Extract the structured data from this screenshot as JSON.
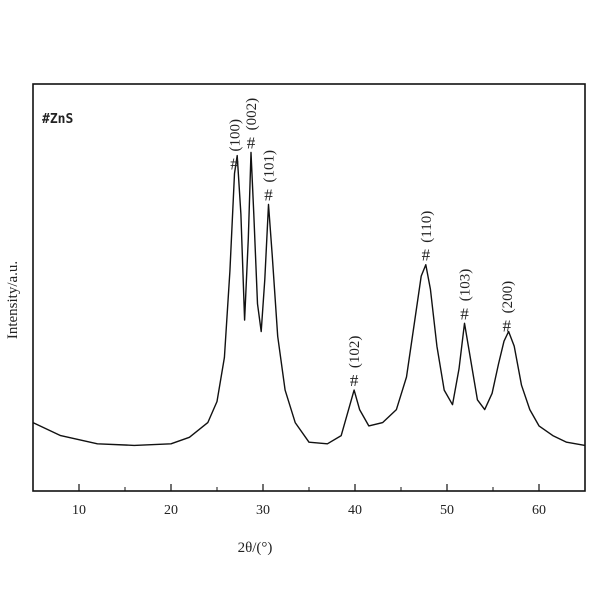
{
  "chart_data": {
    "type": "line",
    "xlabel": "2θ/(°)",
    "ylabel": "Intensity/a.u.",
    "xlim": [
      5,
      65
    ],
    "xticks": [
      10,
      20,
      30,
      40,
      50,
      60
    ],
    "yticks_labeled": false,
    "legend": {
      "text": "#ZnS",
      "placement": "top-left"
    },
    "series": [
      {
        "x": [
          5,
          8,
          12,
          16,
          20,
          22,
          24,
          25,
          25.8,
          26.4,
          26.9,
          27.2,
          27.6,
          28.0,
          28.4,
          28.7,
          29.0,
          29.4,
          29.8,
          30.2,
          30.6,
          31.0,
          31.6,
          32.4,
          33.5,
          35,
          37,
          38.5,
          39.4,
          39.9,
          40.5,
          41.5,
          43,
          44.5,
          45.6,
          46.5,
          47.2,
          47.7,
          48.2,
          48.9,
          49.7,
          50.6,
          51.3,
          51.9,
          52.5,
          53.3,
          54.1,
          54.9,
          55.6,
          56.2,
          56.7,
          57.3,
          58.1,
          59,
          60,
          61.5,
          63,
          65
        ],
        "y": [
          4.2,
          3.4,
          2.9,
          2.8,
          2.9,
          3.3,
          4.2,
          5.5,
          8.2,
          13.5,
          19.5,
          20.6,
          17.0,
          10.5,
          15.5,
          20.8,
          17.0,
          11.5,
          9.8,
          13.0,
          17.6,
          14.5,
          9.5,
          6.2,
          4.2,
          3.0,
          2.9,
          3.4,
          5.2,
          6.2,
          5.0,
          4.0,
          4.2,
          5.0,
          7.0,
          10.5,
          13.2,
          13.9,
          12.4,
          8.9,
          6.2,
          5.3,
          7.5,
          10.3,
          8.3,
          5.6,
          5.0,
          6.0,
          7.8,
          9.2,
          9.8,
          8.9,
          6.5,
          5.0,
          4.0,
          3.4,
          3.0,
          2.8
        ]
      }
    ],
    "annotations": [
      {
        "x": 26.9,
        "hash": "#",
        "label": "(100)"
      },
      {
        "x": 28.7,
        "hash": "#",
        "label": "(002)"
      },
      {
        "x": 30.6,
        "hash": "#",
        "label": "(101)"
      },
      {
        "x": 39.9,
        "hash": "#",
        "label": "(102)"
      },
      {
        "x": 47.7,
        "hash": "#",
        "label": "(110)"
      },
      {
        "x": 51.9,
        "hash": "#",
        "label": "(103)"
      },
      {
        "x": 56.5,
        "hash": "#",
        "label": "(200)"
      }
    ]
  }
}
